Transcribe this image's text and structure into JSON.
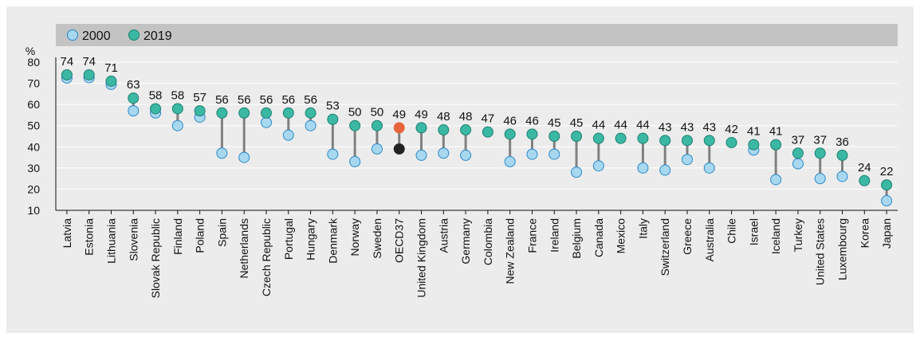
{
  "chart_data": {
    "type": "scatter",
    "ylabel": "%",
    "ylim": [
      10,
      80
    ],
    "yticks": [
      10,
      20,
      30,
      40,
      50,
      60,
      70,
      80
    ],
    "legend_position": "top-left",
    "series": [
      {
        "name": "2000",
        "color": "#a8d8f0",
        "stroke": "#2a88c8"
      },
      {
        "name": "2019",
        "color": "#3bb8a4",
        "stroke": "#1e7f72"
      }
    ],
    "highlight": {
      "category": "OECD37",
      "color_2000": "#222222",
      "color_2019": "#e8663d"
    },
    "categories": [
      "Latvia",
      "Estonia",
      "Lithuania",
      "Slovenia",
      "Slovak Republic",
      "Finland",
      "Poland",
      "Spain",
      "Netherlands",
      "Czech Republic",
      "Portugal",
      "Hungary",
      "Denmark",
      "Norway",
      "Sweden",
      "OECD37",
      "United Kingdom",
      "Austria",
      "Germany",
      "Colombia",
      "New Zealand",
      "France",
      "Ireland",
      "Belgium",
      "Canada",
      "Mexico",
      "Italy",
      "Switzerland",
      "Greece",
      "Australia",
      "Chile",
      "Israel",
      "Iceland",
      "Turkey",
      "United States",
      "Luxembourg",
      "Korea",
      "Japan"
    ],
    "values_2000": [
      72.5,
      72.7,
      69.5,
      57,
      56,
      50,
      54,
      37,
      35,
      51.5,
      45.5,
      50,
      36.5,
      33,
      39,
      39,
      36,
      37,
      36,
      null,
      33,
      36.5,
      36.5,
      28,
      31,
      null,
      30,
      29,
      34,
      30,
      null,
      38.5,
      24.5,
      32,
      25,
      26,
      null,
      14.5
    ],
    "values_2019": [
      74,
      74,
      71,
      63,
      58,
      58,
      57,
      56,
      56,
      56,
      56,
      56,
      53,
      50,
      50,
      49,
      49,
      48,
      48,
      47,
      46,
      46,
      45,
      45,
      44,
      44,
      44,
      43,
      43,
      43,
      42,
      41,
      41,
      37,
      37,
      36,
      24,
      22
    ],
    "labels_2019": [
      "74",
      "74",
      "71",
      "63",
      "58",
      "58",
      "57",
      "56",
      "56",
      "56",
      "56",
      "56",
      "53",
      "50",
      "50",
      "49",
      "49",
      "48",
      "48",
      "47",
      "46",
      "46",
      "45",
      "45",
      "44",
      "44",
      "44",
      "43",
      "43",
      "43",
      "42",
      "41",
      "41",
      "37",
      "37",
      "36",
      "24",
      "22"
    ]
  }
}
